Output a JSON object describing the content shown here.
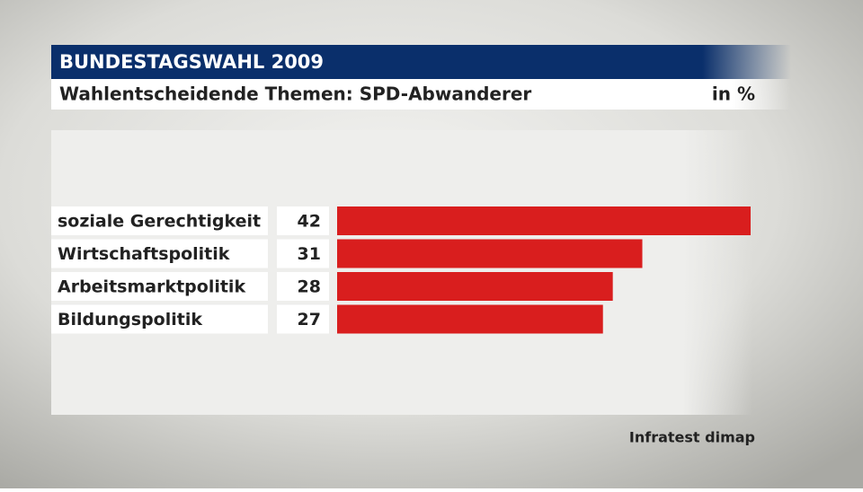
{
  "chart_data": {
    "type": "hbar",
    "title": "BUNDESTAGSWAHL 2009",
    "subtitle": "Wahlentscheidende Themen: SPD-Abwanderer",
    "unit": "in %",
    "source": "Infratest dimap",
    "categories": [
      "soziale Gerechtigkeit",
      "Wirtschaftspolitik",
      "Arbeitsmarktpolitik",
      "Bildungspolitik"
    ],
    "values": [
      42,
      31,
      28,
      27
    ],
    "color": "#d91e1e"
  }
}
